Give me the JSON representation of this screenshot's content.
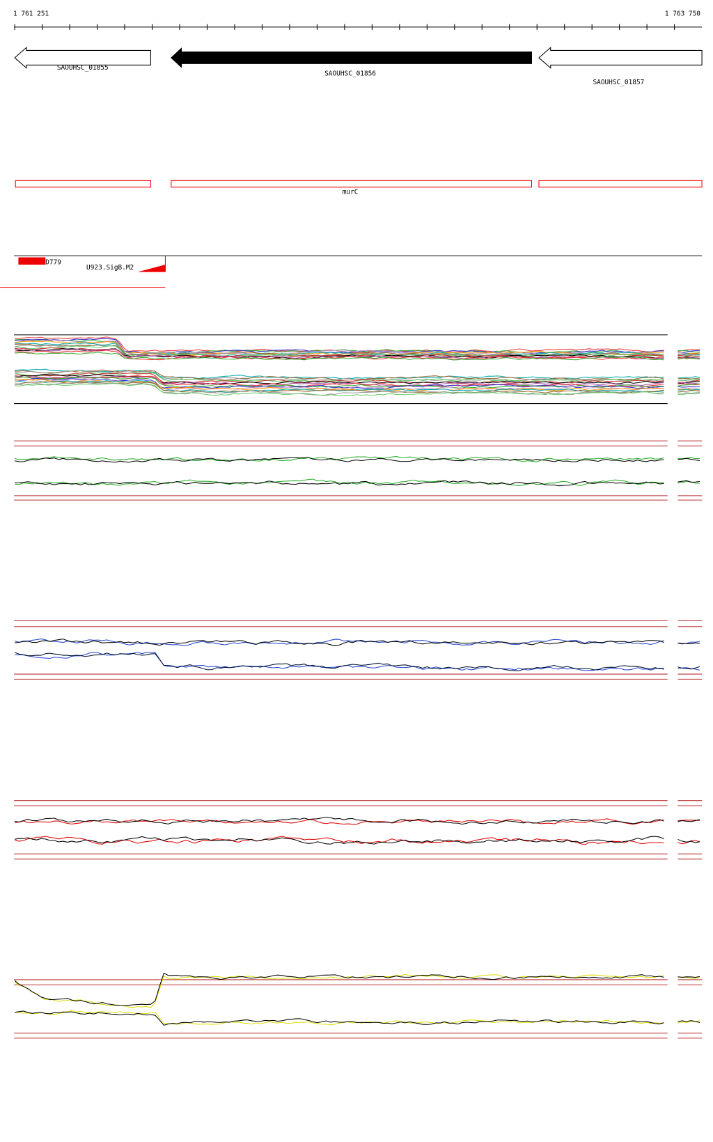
{
  "ruler": {
    "start": "1 761 251",
    "end": "1 763 750"
  },
  "genes": [
    {
      "label": "SAOUHSC_01855"
    },
    {
      "label": "SAOUHSC_01856"
    },
    {
      "label": "SAOUHSC_01857"
    }
  ],
  "feature": {
    "label": "murC"
  },
  "regulation": {
    "labels": [
      "D779",
      "U923.SigB.M2"
    ]
  }
}
